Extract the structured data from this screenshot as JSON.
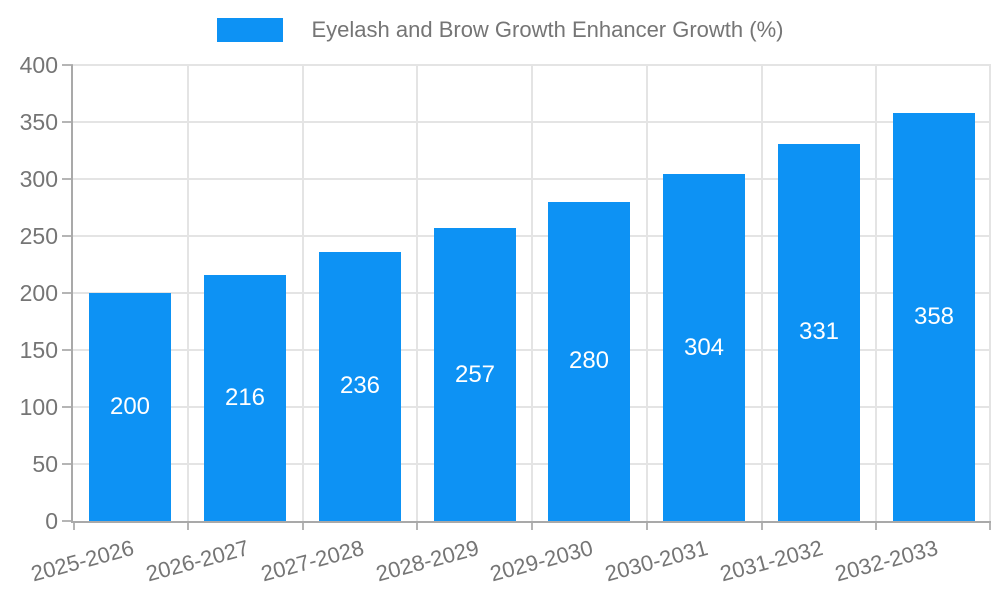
{
  "legend": {
    "label": "Eyelash and Brow Growth Enhancer Growth (%)"
  },
  "chart_data": {
    "type": "bar",
    "title": "Eyelash and Brow Growth Enhancer Growth (%)",
    "categories": [
      "2025-2026",
      "2026-2027",
      "2027-2028",
      "2028-2029",
      "2029-2030",
      "2030-2031",
      "2031-2032",
      "2032-2033"
    ],
    "values": [
      200,
      216,
      236,
      257,
      280,
      304,
      331,
      358
    ],
    "xlabel": "",
    "ylabel": "",
    "ylim": [
      0,
      400
    ],
    "yticks": [
      0,
      50,
      100,
      150,
      200,
      250,
      300,
      350,
      400
    ],
    "grid": true,
    "legend_position": "top",
    "bar_labels_inside": true,
    "colors": {
      "bar": "#0D92F4",
      "bar_label": "#FFFFFF",
      "grid": "#E4E4E4",
      "axis": "#A9A9A9",
      "tick": "#B5B5B5",
      "text": "#757575"
    }
  }
}
